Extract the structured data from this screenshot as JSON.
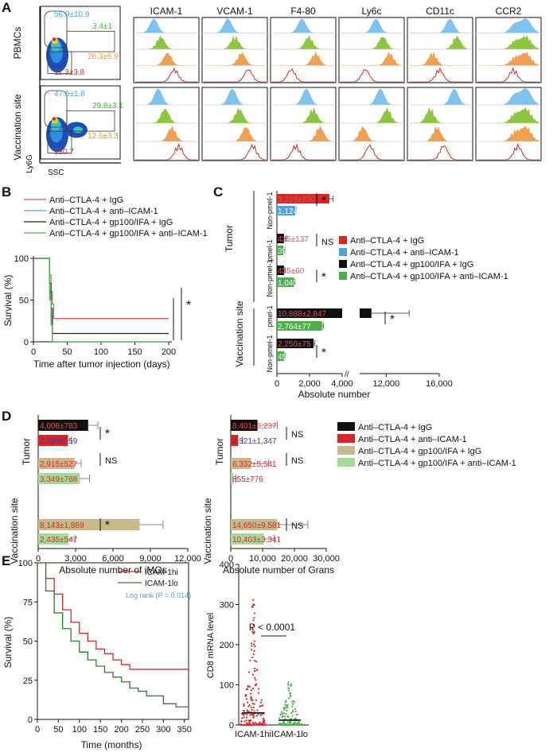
{
  "panels": {
    "A": "A",
    "B": "B",
    "C": "C",
    "D": "D",
    "E": "E"
  },
  "panelA": {
    "markers": [
      "ICAM-1",
      "VCAM-1",
      "F4-80",
      "Ly6c",
      "CD11c",
      "CCR2"
    ],
    "rows": [
      {
        "label": "PBMCs",
        "gates": [
          {
            "text": "56.9±10.9",
            "color": "#4aa3df"
          },
          {
            "text": "3.4±1",
            "color": "#4daf4a"
          },
          {
            "text": "26.3±5.9",
            "color": "#e8962e"
          },
          {
            "text": "11.3±3.8",
            "color": "#d62728"
          }
        ]
      },
      {
        "label": "Vaccination site",
        "gates": [
          {
            "text": "47.5±1.8",
            "color": "#4aa3df"
          },
          {
            "text": "29.8±3.1",
            "color": "#4daf4a"
          },
          {
            "text": "12.6±3.3",
            "color": "#e8962e"
          },
          {
            "text": "2±0.7",
            "color": "#d62728"
          }
        ]
      }
    ],
    "xlabel": "SSC",
    "ylabel": "Ly6G",
    "histColors": [
      "#7ec3ef",
      "#8cc63f",
      "#f0a050",
      "#d62728"
    ]
  },
  "panelB": {
    "legend": [
      {
        "label": "Anti–CTLA-4 + IgG",
        "color": "#e05050"
      },
      {
        "label": "Anti–CTLA-4 + anti–ICAM-1",
        "color": "#4aa3df"
      },
      {
        "label": "Anti–CTLA-4 + gp100/IFA + IgG",
        "color": "#222222"
      },
      {
        "label": "Anti–CTLA-4 + gp100/IFA + anti–ICAM-1",
        "color": "#4daf4a"
      }
    ]
  },
  "panelC": {
    "legend": [
      {
        "label": "Anti–CTLA-4 + IgG",
        "color": "#d62728"
      },
      {
        "label": "Anti–CTLA-4 + anti–ICAM-1",
        "color": "#4aa3df"
      },
      {
        "label": "Anti–CTLA-4 + gp100/IFA + IgG",
        "color": "#111111"
      },
      {
        "label": "Anti–CTLA-4 + gp100/IFA + anti–ICAM-1",
        "color": "#4daf4a"
      }
    ],
    "groupLabels": {
      "tumor": "Tumor",
      "vax": "Vaccination site",
      "nonpmel": "Non-pmel-1",
      "pmel": "pmel-1"
    },
    "sig": [
      "*",
      "NS",
      "*",
      "*",
      "*"
    ]
  },
  "panelD": {
    "legend": [
      {
        "label": "Anti–CTLA-4 + IgG",
        "color": "#111111"
      },
      {
        "label": "Anti–CTLA-4 + anti–ICAM-1",
        "color": "#d62728"
      },
      {
        "label": "Anti–CTLA-4 + gp100/IFA + IgG",
        "color": "#c8b98a"
      },
      {
        "label": "Anti–CTLA-4 + gp100/IFA + anti–ICAM-1",
        "color": "#a8d89a"
      }
    ],
    "groupLabels": {
      "tumor": "Tumor",
      "vax": "Vaccination site"
    },
    "sigLeft": [
      "*",
      "NS",
      "*"
    ],
    "sigRight": [
      "NS",
      "NS",
      "NS"
    ]
  },
  "panelE": {
    "legend": [
      {
        "label": "ICAM-1hi",
        "color": "#d62728"
      },
      {
        "label": "ICAM-1lo",
        "color": "#2e7d32"
      }
    ],
    "logrank": "Log rank (P = 0.014)",
    "pval": "P < 0.0001",
    "cats": [
      "ICAM-1hi",
      "ICAM-1lo"
    ]
  },
  "chart_data": [
    {
      "type": "line",
      "title": "B",
      "xlabel": "Time after tumor injection (days)",
      "ylabel": "Survival (%)",
      "xlim": [
        0,
        200
      ],
      "ylim": [
        0,
        100
      ],
      "xticks": [
        0,
        50,
        100,
        150,
        200
      ],
      "yticks": [
        0,
        50,
        100
      ],
      "series": [
        {
          "name": "Anti–CTLA-4 + IgG",
          "color": "#e05050",
          "x": [
            0,
            20,
            24,
            26,
            28,
            30,
            200
          ],
          "y": [
            100,
            100,
            80,
            60,
            45,
            28,
            28
          ]
        },
        {
          "name": "Anti–CTLA-4 + anti–ICAM-1",
          "color": "#4aa3df",
          "x": [
            0,
            22,
            24,
            26,
            28,
            200
          ],
          "y": [
            100,
            100,
            60,
            30,
            0,
            0
          ]
        },
        {
          "name": "Anti–CTLA-4 + gp100/IFA + IgG",
          "color": "#222222",
          "x": [
            0,
            20,
            24,
            26,
            28,
            200
          ],
          "y": [
            100,
            100,
            70,
            40,
            10,
            10
          ]
        },
        {
          "name": "Anti–CTLA-4 + gp100/IFA + anti–ICAM-1",
          "color": "#4daf4a",
          "x": [
            0,
            22,
            24,
            26,
            28,
            200
          ],
          "y": [
            100,
            100,
            50,
            20,
            0,
            0
          ]
        }
      ],
      "significance": [
        "*"
      ]
    },
    {
      "type": "bar",
      "title": "C",
      "orientation": "horizontal",
      "xlabel": "Absolute number",
      "xlim": [
        0,
        16000
      ],
      "xticks": [
        0,
        2000,
        4000,
        12000,
        16000
      ],
      "axis_break": [
        4000,
        10000
      ],
      "bars": [
        {
          "group": "Tumor",
          "subset": "Non-pmel-1",
          "value": 3215,
          "err": 230,
          "label": "3,215±230",
          "color": "#d62728"
        },
        {
          "group": "Tumor",
          "subset": "Non-pmel-1",
          "value": 1124,
          "err": 72,
          "label": "1,124±72",
          "color": "#4aa3df"
        },
        {
          "group": "Tumor",
          "subset": "pmel-1",
          "value": 435,
          "err": 137,
          "label": "435±137",
          "color": "#111111"
        },
        {
          "group": "Tumor",
          "subset": "pmel-1",
          "value": 395,
          "err": 93,
          "label": "395±93",
          "color": "#4daf4a"
        },
        {
          "group": "Tumor",
          "subset": "Non-pmel-1",
          "value": 435,
          "err": 60,
          "label": "435±60",
          "color": "#111111"
        },
        {
          "group": "Tumor",
          "subset": "Non-pmel-1",
          "value": 1045,
          "err": 57,
          "label": "1,045±57",
          "color": "#4daf4a"
        },
        {
          "group": "Vaccination site",
          "subset": "pmel-1",
          "value": 10888,
          "err": 2847,
          "label": "10,888±2,847",
          "color": "#111111"
        },
        {
          "group": "Vaccination site",
          "subset": "pmel-1",
          "value": 2764,
          "err": 77,
          "label": "2,764±77",
          "color": "#4daf4a"
        },
        {
          "group": "Vaccination site",
          "subset": "Non-pmel-1",
          "value": 2250,
          "err": 75,
          "label": "2,250±75",
          "color": "#111111"
        },
        {
          "group": "Vaccination site",
          "subset": "Non-pmel-1",
          "value": 457,
          "err": 57,
          "label": "457±57",
          "color": "#4daf4a"
        }
      ]
    },
    {
      "type": "bar",
      "title": "D left",
      "orientation": "horizontal",
      "xlabel": "Absolute number of iMOs",
      "xlim": [
        0,
        12000
      ],
      "xticks": [
        0,
        3000,
        6000,
        9000,
        12000
      ],
      "bars": [
        {
          "group": "Tumor",
          "value": 4008,
          "err": 783,
          "label": "4,008±783",
          "color": "#111111"
        },
        {
          "group": "Tumor",
          "value": 2391,
          "err": 259,
          "label": "2,391±259",
          "color": "#d62728"
        },
        {
          "group": "Tumor",
          "value": 2915,
          "err": 527,
          "label": "2,915±527",
          "color": "#c8b98a"
        },
        {
          "group": "Tumor",
          "value": 3349,
          "err": 768,
          "label": "3,349±768",
          "color": "#a8d89a"
        },
        {
          "group": "Vaccination site",
          "value": 8143,
          "err": 1869,
          "label": "8,143±1,869",
          "color": "#c8b98a"
        },
        {
          "group": "Vaccination site",
          "value": 2435,
          "err": 547,
          "label": "2,435±547",
          "color": "#a8d89a"
        }
      ]
    },
    {
      "type": "bar",
      "title": "D right",
      "orientation": "horizontal",
      "xlabel": "Absolute number of Grans",
      "xlim": [
        0,
        30000
      ],
      "xticks": [
        0,
        10000,
        20000,
        30000
      ],
      "bars": [
        {
          "group": "Tumor",
          "value": 8401,
          "err": 6237,
          "label": "8,401±6,237",
          "color": "#111111"
        },
        {
          "group": "Tumor",
          "value": 2321,
          "err": 1347,
          "label": "2,321±1,347",
          "color": "#d62728"
        },
        {
          "group": "Tumor",
          "value": 6332,
          "err": 5541,
          "label": "6,332±5,541",
          "color": "#c8b98a"
        },
        {
          "group": "Tumor",
          "value": 855,
          "err": 776,
          "label": "855±776",
          "color": "#a8d89a"
        },
        {
          "group": "Vaccination site",
          "value": 14650,
          "err": 9581,
          "label": "14,650±9,581",
          "color": "#c8b98a"
        },
        {
          "group": "Vaccination site",
          "value": 10403,
          "err": 3341,
          "label": "10,403±3,341",
          "color": "#a8d89a"
        }
      ]
    },
    {
      "type": "line",
      "title": "E survival",
      "xlabel": "Time (months)",
      "ylabel": "Survival (%)",
      "xlim": [
        0,
        360
      ],
      "ylim": [
        0,
        100
      ],
      "xticks": [
        0,
        50,
        100,
        150,
        200,
        250,
        300,
        350
      ],
      "yticks": [
        0,
        25,
        50,
        75,
        100
      ],
      "series": [
        {
          "name": "ICAM-1hi",
          "color": "#d62728",
          "x": [
            0,
            20,
            40,
            60,
            80,
            100,
            120,
            140,
            160,
            180,
            200,
            220,
            240,
            260,
            300,
            360
          ],
          "y": [
            100,
            90,
            80,
            70,
            62,
            55,
            50,
            45,
            42,
            38,
            35,
            32,
            32,
            32,
            32,
            32
          ]
        },
        {
          "name": "ICAM-1lo",
          "color": "#2e7d32",
          "x": [
            0,
            20,
            40,
            60,
            80,
            100,
            120,
            140,
            160,
            180,
            200,
            220,
            240,
            260,
            300,
            330,
            360
          ],
          "y": [
            100,
            82,
            68,
            58,
            50,
            43,
            38,
            34,
            30,
            27,
            24,
            20,
            18,
            15,
            10,
            8,
            5
          ]
        }
      ]
    },
    {
      "type": "scatter",
      "title": "E dot plot",
      "ylabel": "CD8 mRNA level",
      "ylim": [
        0,
        400
      ],
      "yticks": [
        0,
        100,
        200,
        300,
        400
      ],
      "categories": [
        "ICAM-1hi",
        "ICAM-1lo"
      ],
      "medians": [
        30,
        12
      ],
      "annotation": "P < 0.0001"
    }
  ]
}
